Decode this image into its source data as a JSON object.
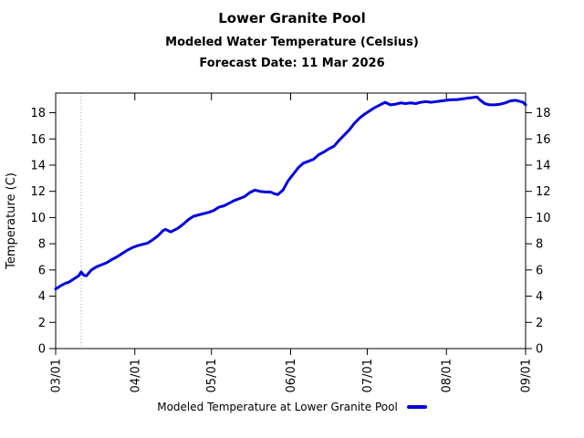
{
  "header": {
    "title": "Lower Granite Pool",
    "subtitle": "Modeled Water Temperature (Celsius)",
    "forecast": "Forecast Date: 11 Mar 2026"
  },
  "chart_data": {
    "type": "line",
    "title": "Lower Granite Pool",
    "subtitle": "Modeled Water Temperature (Celsius)",
    "forecast_date_label": "Forecast Date: 11 Mar 2026",
    "xlabel": "",
    "ylabel": "Temperature (C)",
    "xlim": [
      "03/01",
      "09/01"
    ],
    "ylim": [
      0,
      19.5
    ],
    "yticks": [
      0,
      2,
      4,
      6,
      8,
      10,
      12,
      14,
      16,
      18
    ],
    "xtick_labels": [
      "03/01",
      "04/01",
      "05/01",
      "06/01",
      "07/01",
      "08/01",
      "09/01"
    ],
    "grid": false,
    "legend": {
      "label": "Modeled Temperature at Lower Granite Pool",
      "position": "bottom-center"
    },
    "annotations": [
      {
        "type": "vline",
        "x": "03/11",
        "style": "dotted",
        "color": "#999999",
        "meaning": "forecast date"
      }
    ],
    "axis_color": "#000000",
    "series": [
      {
        "name": "Modeled Temperature at Lower Granite Pool",
        "color": "#0000dd",
        "points": [
          [
            "03/01",
            4.55
          ],
          [
            "03/03",
            4.8
          ],
          [
            "03/05",
            5.0
          ],
          [
            "03/06",
            5.05
          ],
          [
            "03/08",
            5.3
          ],
          [
            "03/10",
            5.55
          ],
          [
            "03/11",
            5.85
          ],
          [
            "03/12",
            5.6
          ],
          [
            "03/13",
            5.55
          ],
          [
            "03/15",
            6.0
          ],
          [
            "03/17",
            6.25
          ],
          [
            "03/19",
            6.4
          ],
          [
            "03/21",
            6.55
          ],
          [
            "03/23",
            6.8
          ],
          [
            "03/25",
            7.0
          ],
          [
            "03/27",
            7.25
          ],
          [
            "03/29",
            7.5
          ],
          [
            "03/31",
            7.7
          ],
          [
            "04/02",
            7.85
          ],
          [
            "04/04",
            7.95
          ],
          [
            "04/06",
            8.05
          ],
          [
            "04/08",
            8.3
          ],
          [
            "04/10",
            8.6
          ],
          [
            "04/12",
            9.0
          ],
          [
            "04/13",
            9.1
          ],
          [
            "04/15",
            8.9
          ],
          [
            "04/16",
            9.0
          ],
          [
            "04/18",
            9.2
          ],
          [
            "04/20",
            9.5
          ],
          [
            "04/22",
            9.85
          ],
          [
            "04/24",
            10.1
          ],
          [
            "04/26",
            10.2
          ],
          [
            "04/28",
            10.3
          ],
          [
            "04/30",
            10.4
          ],
          [
            "05/02",
            10.55
          ],
          [
            "05/04",
            10.8
          ],
          [
            "05/06",
            10.9
          ],
          [
            "05/08",
            11.1
          ],
          [
            "05/10",
            11.3
          ],
          [
            "05/12",
            11.45
          ],
          [
            "05/14",
            11.6
          ],
          [
            "05/16",
            11.9
          ],
          [
            "05/18",
            12.1
          ],
          [
            "05/20",
            12.0
          ],
          [
            "05/22",
            11.95
          ],
          [
            "05/24",
            11.95
          ],
          [
            "05/26",
            11.8
          ],
          [
            "05/27",
            11.75
          ],
          [
            "05/29",
            12.1
          ],
          [
            "05/31",
            12.8
          ],
          [
            "06/02",
            13.3
          ],
          [
            "06/04",
            13.8
          ],
          [
            "06/06",
            14.15
          ],
          [
            "06/08",
            14.3
          ],
          [
            "06/10",
            14.45
          ],
          [
            "06/12",
            14.8
          ],
          [
            "06/14",
            15.0
          ],
          [
            "06/16",
            15.25
          ],
          [
            "06/18",
            15.45
          ],
          [
            "06/20",
            15.9
          ],
          [
            "06/22",
            16.3
          ],
          [
            "06/24",
            16.7
          ],
          [
            "06/26",
            17.2
          ],
          [
            "06/28",
            17.6
          ],
          [
            "06/30",
            17.9
          ],
          [
            "07/02",
            18.15
          ],
          [
            "07/04",
            18.4
          ],
          [
            "07/06",
            18.6
          ],
          [
            "07/08",
            18.8
          ],
          [
            "07/10",
            18.6
          ],
          [
            "07/12",
            18.65
          ],
          [
            "07/14",
            18.75
          ],
          [
            "07/16",
            18.7
          ],
          [
            "07/18",
            18.75
          ],
          [
            "07/20",
            18.7
          ],
          [
            "07/22",
            18.8
          ],
          [
            "07/24",
            18.85
          ],
          [
            "07/26",
            18.8
          ],
          [
            "07/28",
            18.85
          ],
          [
            "07/30",
            18.9
          ],
          [
            "08/01",
            18.95
          ],
          [
            "08/03",
            19.0
          ],
          [
            "08/05",
            19.0
          ],
          [
            "08/07",
            19.05
          ],
          [
            "08/09",
            19.1
          ],
          [
            "08/11",
            19.15
          ],
          [
            "08/13",
            19.2
          ],
          [
            "08/14",
            19.0
          ],
          [
            "08/16",
            18.7
          ],
          [
            "08/18",
            18.6
          ],
          [
            "08/20",
            18.6
          ],
          [
            "08/22",
            18.65
          ],
          [
            "08/24",
            18.75
          ],
          [
            "08/26",
            18.9
          ],
          [
            "08/28",
            18.95
          ],
          [
            "08/29",
            18.9
          ],
          [
            "08/31",
            18.8
          ],
          [
            "09/01",
            18.6
          ]
        ]
      }
    ]
  }
}
